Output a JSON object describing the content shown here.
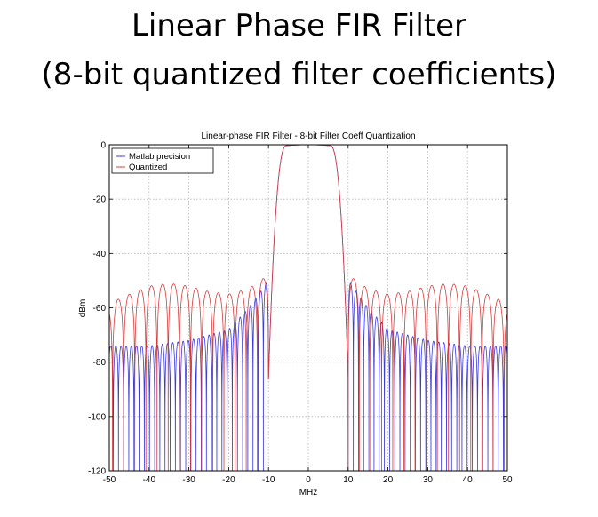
{
  "slide": {
    "title_line_1": "Linear Phase FIR Filter",
    "title_line_2": "(8-bit quantized filter coefficients)"
  },
  "chart_data": {
    "type": "line",
    "title": "Linear-phase FIR Filter - 8-bit Filter Coeff Quantization",
    "xlabel": "MHz",
    "ylabel": "dBm",
    "xlim": [
      -50,
      50
    ],
    "ylim": [
      -120,
      0
    ],
    "xticks": [
      -50,
      -40,
      -30,
      -20,
      -10,
      0,
      10,
      20,
      30,
      40,
      50
    ],
    "yticks": [
      0,
      -20,
      -40,
      -60,
      -80,
      -100,
      -120
    ],
    "grid": true,
    "legend_position": "top-left",
    "passband": {
      "center": 0,
      "edge_mhz": 10,
      "peak_db": 0
    },
    "series": [
      {
        "name": "Matlab precision",
        "color": "#3b3bd8",
        "stopband_peak_envelope_db": {
          "x": [
            -50,
            -45,
            -40,
            -30,
            -25,
            -20,
            -15,
            -12,
            -10.2
          ],
          "y": [
            -74,
            -74,
            -74,
            -72,
            -70,
            -68,
            -60,
            -54,
            -50
          ]
        },
        "sidelobe_spacing_mhz": 1.3,
        "null_depth_db": -120
      },
      {
        "name": "Quantized",
        "color": "#d83b3b",
        "stopband_peak_envelope_db": {
          "x": [
            -50,
            -48,
            -45,
            -40,
            -35,
            -30,
            -25,
            -20,
            -15,
            -12,
            -10.2
          ],
          "y": [
            -60,
            -57,
            -55,
            -52,
            -51,
            -52,
            -54,
            -55,
            -53,
            -50,
            -48
          ]
        },
        "sidelobe_spacing_mhz": 2.8,
        "null_depth_db": -120
      }
    ]
  }
}
